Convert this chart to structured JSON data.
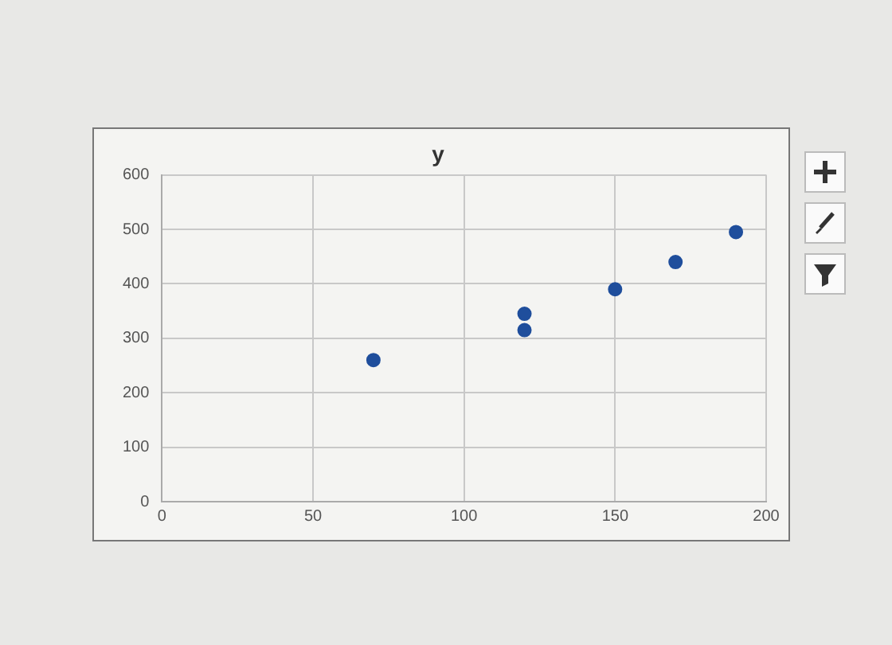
{
  "chart_data": {
    "type": "scatter",
    "title": "y",
    "x": [
      70,
      120,
      120,
      150,
      170,
      190
    ],
    "series": [
      {
        "color": "#1f4e9c",
        "values": [
          260,
          345,
          315,
          390,
          440,
          495
        ]
      }
    ],
    "xlim": [
      0,
      200
    ],
    "xticks": [
      0,
      50,
      100,
      150,
      200
    ],
    "ylim": [
      0,
      600
    ],
    "yticks": [
      0,
      100,
      200,
      300,
      400,
      500,
      600
    ],
    "grid": true,
    "marker": "circle",
    "legend": false
  }
}
